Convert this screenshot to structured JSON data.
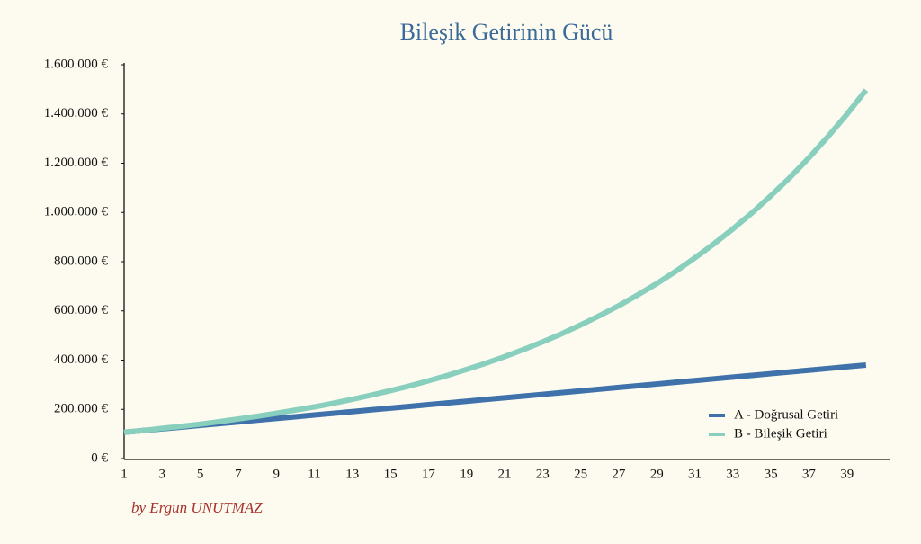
{
  "chart_data": {
    "type": "line",
    "title": "Bileşik Getirinin Gücü",
    "annotation": "by Ergun UNUTMAZ",
    "categories": [
      1,
      null,
      3,
      null,
      5,
      null,
      7,
      null,
      9,
      null,
      11,
      null,
      13,
      null,
      15,
      null,
      17,
      null,
      19,
      null,
      21,
      null,
      23,
      null,
      25,
      null,
      27,
      null,
      29,
      null,
      31,
      null,
      33,
      null,
      35,
      null,
      37,
      null,
      39,
      null
    ],
    "series": [
      {
        "name": "A - Doğrusal Getiri",
        "color": "#3f72aa",
        "values": [
          107000,
          114000,
          121000,
          128000,
          135000,
          142000,
          149000,
          156000,
          163000,
          170000,
          177000,
          184000,
          191000,
          198000,
          205000,
          212000,
          219000,
          226000,
          233000,
          240000,
          247000,
          254000,
          261000,
          268000,
          275000,
          282000,
          289000,
          296000,
          303000,
          310000,
          317000,
          324000,
          331000,
          338000,
          345000,
          352000,
          359000,
          366000,
          373000,
          380000
        ]
      },
      {
        "name": "B - Bileşik Getiri",
        "color": "#88cfbd",
        "values": [
          107000,
          114000,
          123000,
          131000,
          140000,
          150000,
          161000,
          172000,
          184000,
          197000,
          210000,
          225000,
          241000,
          258000,
          276000,
          295000,
          316000,
          338000,
          362000,
          387000,
          414000,
          443000,
          474000,
          507000,
          543000,
          581000,
          621000,
          665000,
          711000,
          761000,
          815000,
          872000,
          933000,
          998000,
          1068000,
          1142000,
          1222000,
          1308000,
          1399000,
          1497000
        ]
      }
    ],
    "ylim": [
      0,
      1600000
    ],
    "yticks": [
      {
        "value": 0,
        "label": "0 €"
      },
      {
        "value": 200000,
        "label": "200.000 €"
      },
      {
        "value": 400000,
        "label": "400.000 €"
      },
      {
        "value": 600000,
        "label": "600.000 €"
      },
      {
        "value": 800000,
        "label": "800.000 €"
      },
      {
        "value": 1000000,
        "label": "1.000.000 €"
      },
      {
        "value": 1200000,
        "label": "1.200.000 €"
      },
      {
        "value": 1400000,
        "label": "1.400.000 €"
      },
      {
        "value": 1600000,
        "label": "1.600.000 €"
      }
    ],
    "grid": false,
    "legend": "lower right"
  }
}
